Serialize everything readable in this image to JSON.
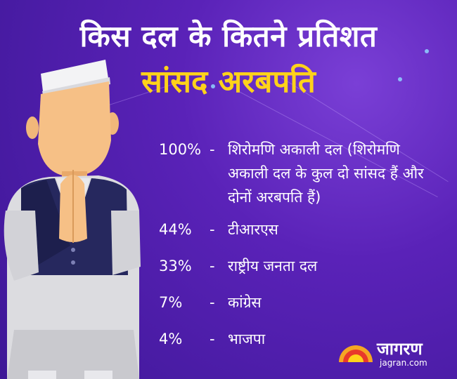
{
  "header": {
    "title": "किस दल के कितने प्रतिशत",
    "subtitle": "सांसद अरबपति"
  },
  "list": [
    {
      "percent": "100%",
      "dash": "-",
      "party": "शिरोमणि अकाली दल (शिरोमणि अकाली दल के कुल दो सांसद हैं और दोनों अरबपति हैं)"
    },
    {
      "percent": "44%",
      "dash": "-",
      "party": "टीआरएस"
    },
    {
      "percent": "33%",
      "dash": "-",
      "party": "राष्ट्रीय जनता दल"
    },
    {
      "percent": "7%",
      "dash": "-",
      "party": "कांग्रेस"
    },
    {
      "percent": "4%",
      "dash": "-",
      "party": "भाजपा"
    }
  ],
  "logo": {
    "name": "जागरण",
    "url": "jagran.com"
  },
  "colors": {
    "background": "#5a22b8",
    "title": "#ffffff",
    "subtitle": "#ffd21a"
  }
}
